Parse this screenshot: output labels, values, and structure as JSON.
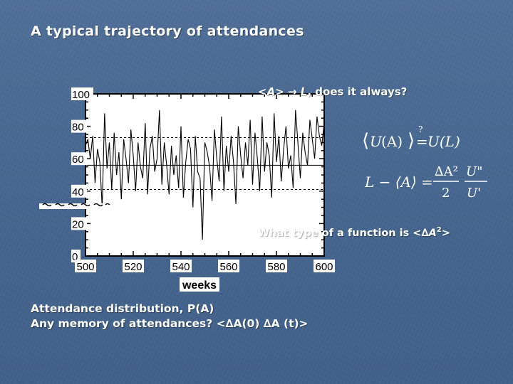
{
  "slide": {
    "title": "A typical trajectory of attendances",
    "convergence_lhs": "<A>",
    "convergence_arrow": "→",
    "convergence_target": "L",
    "convergence_rest": ", does it always?",
    "question_prefix": "What type of a function is <",
    "question_symbol": "∆A",
    "question_exp": "2",
    "question_suffix": ">",
    "bottom_line1": "Attendance distribution, P(A)",
    "bottom_line2": "Any memory of attendances? <∆A(0) ∆A (t)>",
    "formula1": {
      "lhs_open": "⟨",
      "lhs_fn": "U",
      "lhs_arg": "(A)",
      "lhs_close": "⟩",
      "rel": "?",
      "equals": "=",
      "rhs": "U(L)"
    },
    "formula2": {
      "lhs": "L − ⟨A⟩ =",
      "frac1_num": "∆A²",
      "frac1_den": "2",
      "frac2_num": "U\"",
      "frac2_den": "U'"
    }
  },
  "chart_data": {
    "type": "line",
    "title": "",
    "xlabel": "weeks",
    "ylabel": "",
    "xlim": [
      500,
      600
    ],
    "ylim": [
      0,
      100
    ],
    "xticks": [
      500,
      520,
      540,
      560,
      580,
      600
    ],
    "yticks": [
      0,
      20,
      40,
      60,
      80,
      100
    ],
    "reference_lines": [
      {
        "y": 73,
        "style": "dashed"
      },
      {
        "y": 56,
        "style": "solid"
      },
      {
        "y": 41,
        "style": "dashed"
      }
    ],
    "series": [
      {
        "x": [
          500,
          501,
          502,
          503,
          504,
          505,
          506,
          507,
          508,
          509,
          510,
          511,
          512,
          513,
          514,
          515,
          516,
          517,
          518,
          519,
          520,
          521,
          522,
          523,
          524,
          525,
          526,
          527,
          528,
          529,
          530,
          531,
          532,
          533,
          534,
          535,
          536,
          537,
          538,
          539,
          540,
          541,
          542,
          543,
          544,
          545,
          546,
          547,
          548,
          549,
          550,
          551,
          552,
          553,
          554,
          555,
          556,
          557,
          558,
          559,
          560,
          561,
          562,
          563,
          564,
          565,
          566,
          567,
          568,
          569,
          570,
          571,
          572,
          573,
          574,
          575,
          576,
          577,
          578,
          579,
          580,
          581,
          582,
          583,
          584,
          585,
          586,
          587,
          588,
          589,
          590,
          591,
          592,
          593,
          594,
          595,
          596,
          597,
          598,
          599,
          600
        ],
        "values": [
          68,
          72,
          60,
          74,
          45,
          66,
          58,
          30,
          88,
          54,
          70,
          41,
          76,
          50,
          64,
          35,
          72,
          60,
          45,
          78,
          62,
          40,
          70,
          55,
          48,
          82,
          38,
          66,
          74,
          52,
          60,
          90,
          44,
          70,
          56,
          38,
          68,
          50,
          62,
          42,
          80,
          36,
          58,
          72,
          66,
          30,
          74,
          52,
          48,
          10,
          70,
          64,
          55,
          34,
          78,
          60,
          46,
          86,
          40,
          68,
          52,
          74,
          58,
          32,
          80,
          62,
          48,
          70,
          56,
          84,
          44,
          76,
          60,
          40,
          86,
          52,
          70,
          62,
          36,
          88,
          58,
          74,
          46,
          66,
          80,
          54,
          62,
          42,
          90,
          70,
          48,
          76,
          64,
          56,
          84,
          72,
          60,
          86,
          74,
          68,
          82
        ]
      }
    ]
  }
}
